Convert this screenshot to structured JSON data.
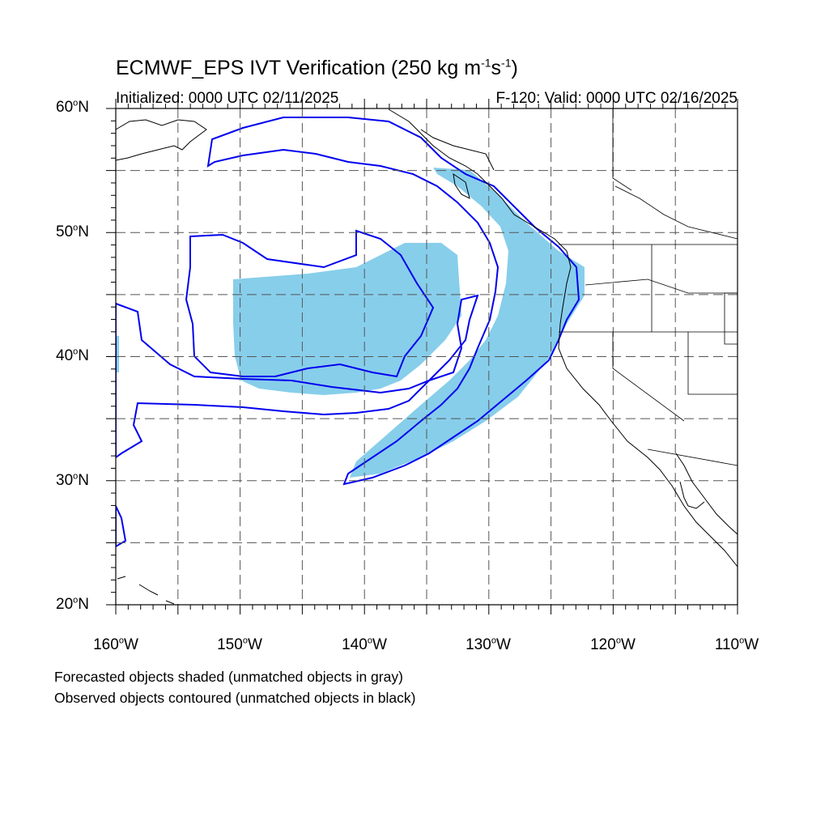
{
  "title": {
    "prefix": "ECMWF_EPS IVT Verification (250 kg m",
    "exp1": "-1",
    "mid": "s",
    "exp2": "-1",
    "suffix": ")"
  },
  "subtitle": {
    "initialized": "Initialized: 0000 UTC 02/11/2025",
    "valid": "F-120: Valid: 0000 UTC 02/16/2025"
  },
  "latitudes": [
    {
      "value": "60",
      "hemi": "N"
    },
    {
      "value": "50",
      "hemi": "N"
    },
    {
      "value": "40",
      "hemi": "N"
    },
    {
      "value": "30",
      "hemi": "N"
    },
    {
      "value": "20",
      "hemi": "N"
    }
  ],
  "longitudes": [
    {
      "value": "160",
      "hemi": "W"
    },
    {
      "value": "150",
      "hemi": "W"
    },
    {
      "value": "140",
      "hemi": "W"
    },
    {
      "value": "130",
      "hemi": "W"
    },
    {
      "value": "120",
      "hemi": "W"
    },
    {
      "value": "110",
      "hemi": "W"
    }
  ],
  "degree_symbol": "o",
  "legend": {
    "forecast": "Forecasted objects shaded (unmatched objects in gray)",
    "observed": "Observed objects contoured (unmatched objects in black)"
  },
  "colors": {
    "forecast_fill": "#87ceeb",
    "observed_contour": "#0000ee",
    "coastline": "#000000",
    "grid": "#555555"
  },
  "map_extent": {
    "lon": [
      -160,
      -110
    ],
    "lat": [
      20,
      60
    ]
  }
}
